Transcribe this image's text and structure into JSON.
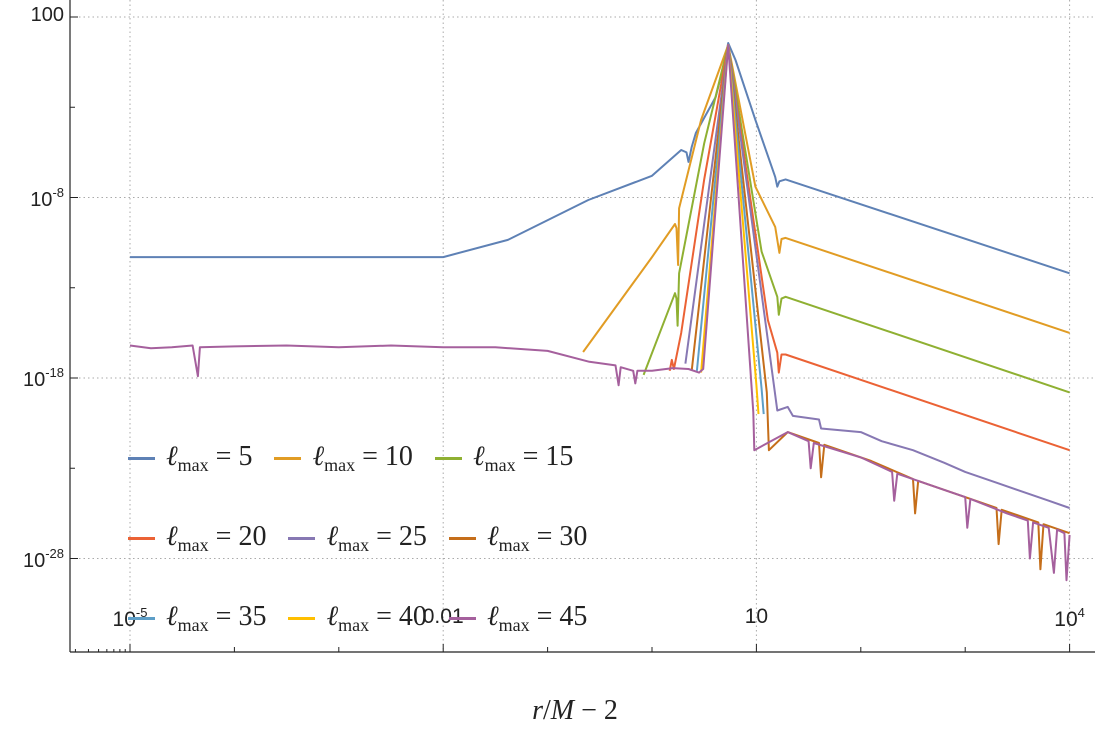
{
  "chart_data": {
    "type": "line",
    "title": "",
    "xlabel_parts": {
      "var": "r",
      "rest": "/",
      "var2": "M",
      "tail": " − 2"
    },
    "xlabel": "r/M − 2",
    "ylabel": "",
    "x_scale": "log10",
    "y_scale": "log10",
    "note": "points are given as [log10(x), log10(y)]",
    "xlim_log10": [
      -5.57,
      4.12
    ],
    "ylim_log10": [
      -32.5,
      2.95
    ],
    "grid": true,
    "x_ticks": [
      {
        "log10": -5,
        "base": "10",
        "exp": "-5"
      },
      {
        "log10": -2,
        "base": "0.01",
        "exp": ""
      },
      {
        "log10": 1,
        "base": "10",
        "exp": ""
      },
      {
        "log10": 4,
        "base": "10",
        "exp": "4"
      }
    ],
    "y_ticks": [
      {
        "log10": 2,
        "base": "100",
        "exp": ""
      },
      {
        "log10": -8,
        "base": "10",
        "exp": "-8"
      },
      {
        "log10": -18,
        "base": "10",
        "exp": "-18"
      },
      {
        "log10": -28,
        "base": "10",
        "exp": "-28"
      }
    ],
    "legend_placement": "bottom-left",
    "legend_symbol": "ℓ",
    "legend_sub": "max",
    "series": [
      {
        "name": "ℓmax = 5",
        "value": "5",
        "color": "#5E81B5",
        "points": [
          [
            -5,
            -11.3
          ],
          [
            -2,
            -11.3
          ],
          [
            -1.38,
            -10.35
          ],
          [
            -0.61,
            -8.14
          ],
          [
            0.0,
            -6.8
          ],
          [
            0.28,
            -5.37
          ],
          [
            0.33,
            -5.5
          ],
          [
            0.35,
            -6.03
          ],
          [
            0.38,
            -5.2
          ],
          [
            0.42,
            -4.43
          ],
          [
            0.61,
            -2.43
          ],
          [
            0.7,
            -0.38
          ],
          [
            0.73,
            0.56
          ],
          [
            0.8,
            -0.38
          ],
          [
            0.99,
            -3.7
          ],
          [
            1.18,
            -6.86
          ],
          [
            1.2,
            -7.4
          ],
          [
            1.22,
            -7.1
          ],
          [
            1.28,
            -7.0
          ],
          [
            4,
            -12.2
          ]
        ]
      },
      {
        "name": "ℓmax = 10",
        "value": "10",
        "color": "#E19C24",
        "points": [
          [
            -0.66,
            -16.56
          ],
          [
            0.0,
            -11.3
          ],
          [
            0.22,
            -9.47
          ],
          [
            0.235,
            -9.7
          ],
          [
            0.25,
            -11.74
          ],
          [
            0.26,
            -8.6
          ],
          [
            0.47,
            -3.7
          ],
          [
            0.73,
            0.45
          ],
          [
            0.99,
            -7.4
          ],
          [
            1.18,
            -9.63
          ],
          [
            1.22,
            -11.07
          ],
          [
            1.24,
            -10.3
          ],
          [
            1.28,
            -10.24
          ],
          [
            4,
            -15.5
          ]
        ]
      },
      {
        "name": "ℓmax = 15",
        "value": "15",
        "color": "#8FB032",
        "points": [
          [
            -0.08,
            -17.83
          ],
          [
            0.22,
            -13.3
          ],
          [
            0.235,
            -13.6
          ],
          [
            0.245,
            -15.1
          ],
          [
            0.26,
            -12.2
          ],
          [
            0.5,
            -5
          ],
          [
            0.73,
            0.45
          ],
          [
            1.05,
            -11.0
          ],
          [
            1.2,
            -13.5
          ],
          [
            1.215,
            -14.5
          ],
          [
            1.24,
            -13.6
          ],
          [
            1.28,
            -13.5
          ],
          [
            4,
            -18.8
          ]
        ]
      },
      {
        "name": "ℓmax = 20",
        "value": "20",
        "color": "#EB6235",
        "points": [
          [
            0.17,
            -17.6
          ],
          [
            0.19,
            -17.0
          ],
          [
            0.21,
            -17.5
          ],
          [
            0.28,
            -15.5
          ],
          [
            0.5,
            -7
          ],
          [
            0.73,
            0.45
          ],
          [
            1.11,
            -14.8
          ],
          [
            1.2,
            -16.6
          ],
          [
            1.215,
            -17.7
          ],
          [
            1.24,
            -16.7
          ],
          [
            1.28,
            -16.7
          ],
          [
            4,
            -22
          ]
        ]
      },
      {
        "name": "ℓmax = 25",
        "value": "25",
        "color": "#8778B3",
        "points": [
          [
            0.32,
            -17.2
          ],
          [
            0.73,
            0.45
          ],
          [
            1.2,
            -19.8
          ],
          [
            1.3,
            -19.6
          ],
          [
            1.35,
            -20.1
          ],
          [
            1.6,
            -20.3
          ],
          [
            1.62,
            -20.8
          ],
          [
            2,
            -21
          ],
          [
            2.2,
            -21.5
          ],
          [
            2.5,
            -22
          ],
          [
            2.8,
            -22.7
          ],
          [
            3,
            -23.2
          ],
          [
            3.3,
            -23.8
          ],
          [
            3.5,
            -24.2
          ],
          [
            3.8,
            -24.8
          ],
          [
            4,
            -25.2
          ]
        ]
      },
      {
        "name": "ℓmax = 30",
        "value": "30",
        "color": "#C56E1A",
        "points": [
          [
            0.38,
            -17.6
          ],
          [
            0.73,
            0.45
          ],
          [
            1.1,
            -18.8
          ],
          [
            1.12,
            -22
          ],
          [
            1.3,
            -21
          ],
          [
            1.6,
            -21.6
          ],
          [
            1.62,
            -23.5
          ],
          [
            1.65,
            -21.7
          ],
          [
            2.1,
            -22.6
          ],
          [
            2.5,
            -23.6
          ],
          [
            2.52,
            -25.5
          ],
          [
            2.55,
            -23.7
          ],
          [
            3.1,
            -24.8
          ],
          [
            3.3,
            -25.2
          ],
          [
            3.32,
            -27.2
          ],
          [
            3.35,
            -25.3
          ],
          [
            3.7,
            -26
          ],
          [
            3.72,
            -28.6
          ],
          [
            3.75,
            -26.1
          ],
          [
            4,
            -26.6
          ]
        ]
      },
      {
        "name": "ℓmax = 35",
        "value": "35",
        "color": "#5D9EC7",
        "points": [
          [
            0.43,
            -17.6
          ],
          [
            0.73,
            0.45
          ],
          [
            1.05,
            -18.6
          ],
          [
            1.07,
            -20
          ]
        ]
      },
      {
        "name": "ℓmax = 40",
        "value": "40",
        "color": "#FFBF00",
        "points": [
          [
            0.47,
            -17.7
          ],
          [
            0.73,
            0.45
          ],
          [
            1.0,
            -18.4
          ],
          [
            1.02,
            -20
          ]
        ]
      },
      {
        "name": "ℓmax = 45",
        "value": "45",
        "color": "#A5609D",
        "points": [
          [
            -5,
            -16.2
          ],
          [
            -4.8,
            -16.35
          ],
          [
            -4.6,
            -16.3
          ],
          [
            -4.4,
            -16.2
          ],
          [
            -4.35,
            -17.9
          ],
          [
            -4.33,
            -16.3
          ],
          [
            -4.0,
            -16.25
          ],
          [
            -3.5,
            -16.2
          ],
          [
            -3,
            -16.3
          ],
          [
            -2.5,
            -16.2
          ],
          [
            -2,
            -16.3
          ],
          [
            -1.5,
            -16.3
          ],
          [
            -1,
            -16.5
          ],
          [
            -0.6,
            -17.1
          ],
          [
            -0.35,
            -17.3
          ],
          [
            -0.32,
            -18.4
          ],
          [
            -0.3,
            -17.4
          ],
          [
            -0.18,
            -17.6
          ],
          [
            -0.16,
            -18.3
          ],
          [
            -0.14,
            -17.6
          ],
          [
            0,
            -17.6
          ],
          [
            0.2,
            -17.45
          ],
          [
            0.35,
            -17.5
          ],
          [
            0.45,
            -17.7
          ],
          [
            0.49,
            -17.5
          ],
          [
            0.73,
            0.45
          ],
          [
            0.97,
            -19.9
          ],
          [
            0.98,
            -22
          ],
          [
            1.3,
            -21
          ],
          [
            1.5,
            -21.5
          ],
          [
            1.52,
            -23
          ],
          [
            1.55,
            -21.6
          ],
          [
            2,
            -22.4
          ],
          [
            2.3,
            -23.2
          ],
          [
            2.32,
            -24.8
          ],
          [
            2.35,
            -23.3
          ],
          [
            2.8,
            -24.2
          ],
          [
            3.0,
            -24.6
          ],
          [
            3.02,
            -26.3
          ],
          [
            3.05,
            -24.7
          ],
          [
            3.4,
            -25.5
          ],
          [
            3.6,
            -25.9
          ],
          [
            3.62,
            -28
          ],
          [
            3.65,
            -26
          ],
          [
            3.8,
            -26.3
          ],
          [
            3.85,
            -28.8
          ],
          [
            3.88,
            -26.4
          ],
          [
            3.95,
            -26.6
          ],
          [
            3.97,
            -29.2
          ],
          [
            4,
            -26.7
          ]
        ]
      }
    ]
  }
}
